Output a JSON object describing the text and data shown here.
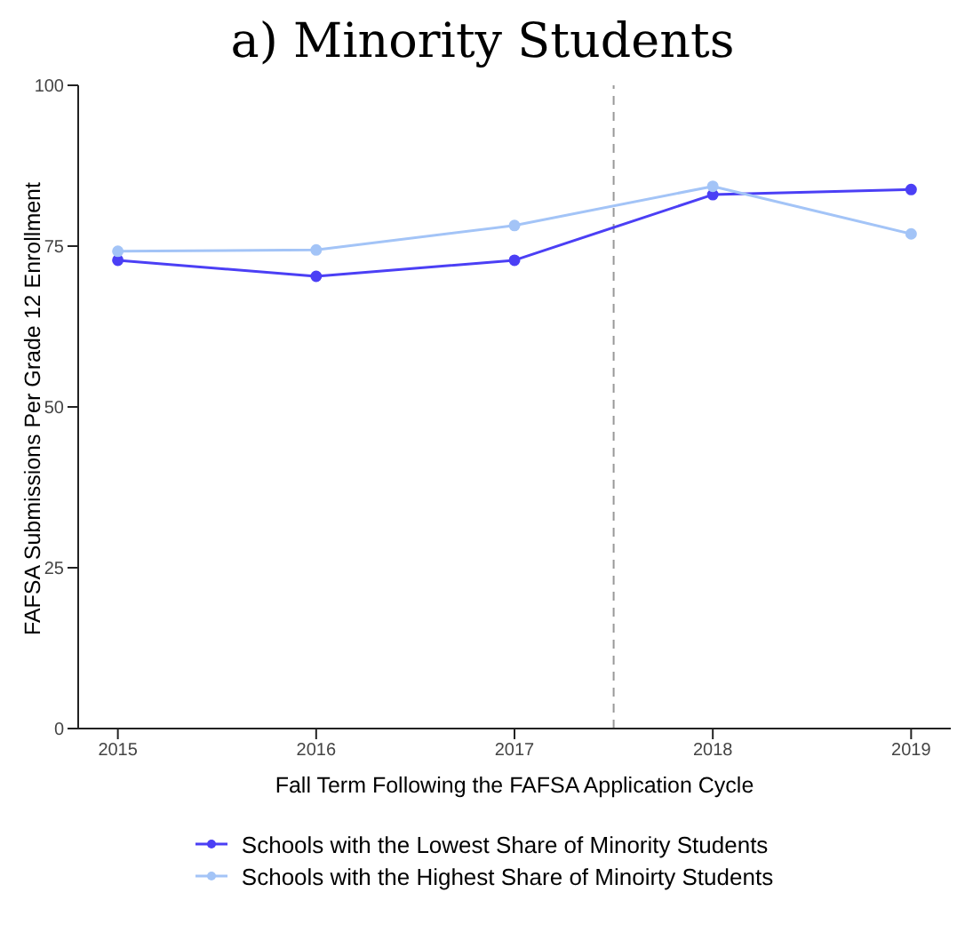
{
  "chart_data": {
    "type": "line",
    "title": "a) Minority Students",
    "xlabel": "Fall Term Following the FAFSA Application Cycle",
    "ylabel": "FAFSA Submissions Per Grade 12 Enrollment",
    "x": [
      2015,
      2016,
      2017,
      2018,
      2019
    ],
    "series": [
      {
        "name": "Schools with the Lowest Share of Minority Students",
        "color": "#4b3ff5",
        "values": [
          72.8,
          70.3,
          72.8,
          83.0,
          83.8
        ]
      },
      {
        "name": "Schools with the Highest Share of Minoirty Students",
        "color": "#a3c4f7",
        "values": [
          74.2,
          74.4,
          78.2,
          84.3,
          76.9
        ]
      }
    ],
    "xlim": [
      2014.8,
      2019.2
    ],
    "xticks": [
      2015,
      2016,
      2017,
      2018,
      2019
    ],
    "ylim": [
      0,
      100
    ],
    "yticks": [
      0,
      25,
      50,
      75,
      100
    ],
    "ref_lines": [
      {
        "axis": "x",
        "value": 2017.5,
        "color": "#999999",
        "line_style": "dashed"
      }
    ],
    "grid": false,
    "legend": "bottom",
    "marker": "circle",
    "line_style": "solid"
  }
}
